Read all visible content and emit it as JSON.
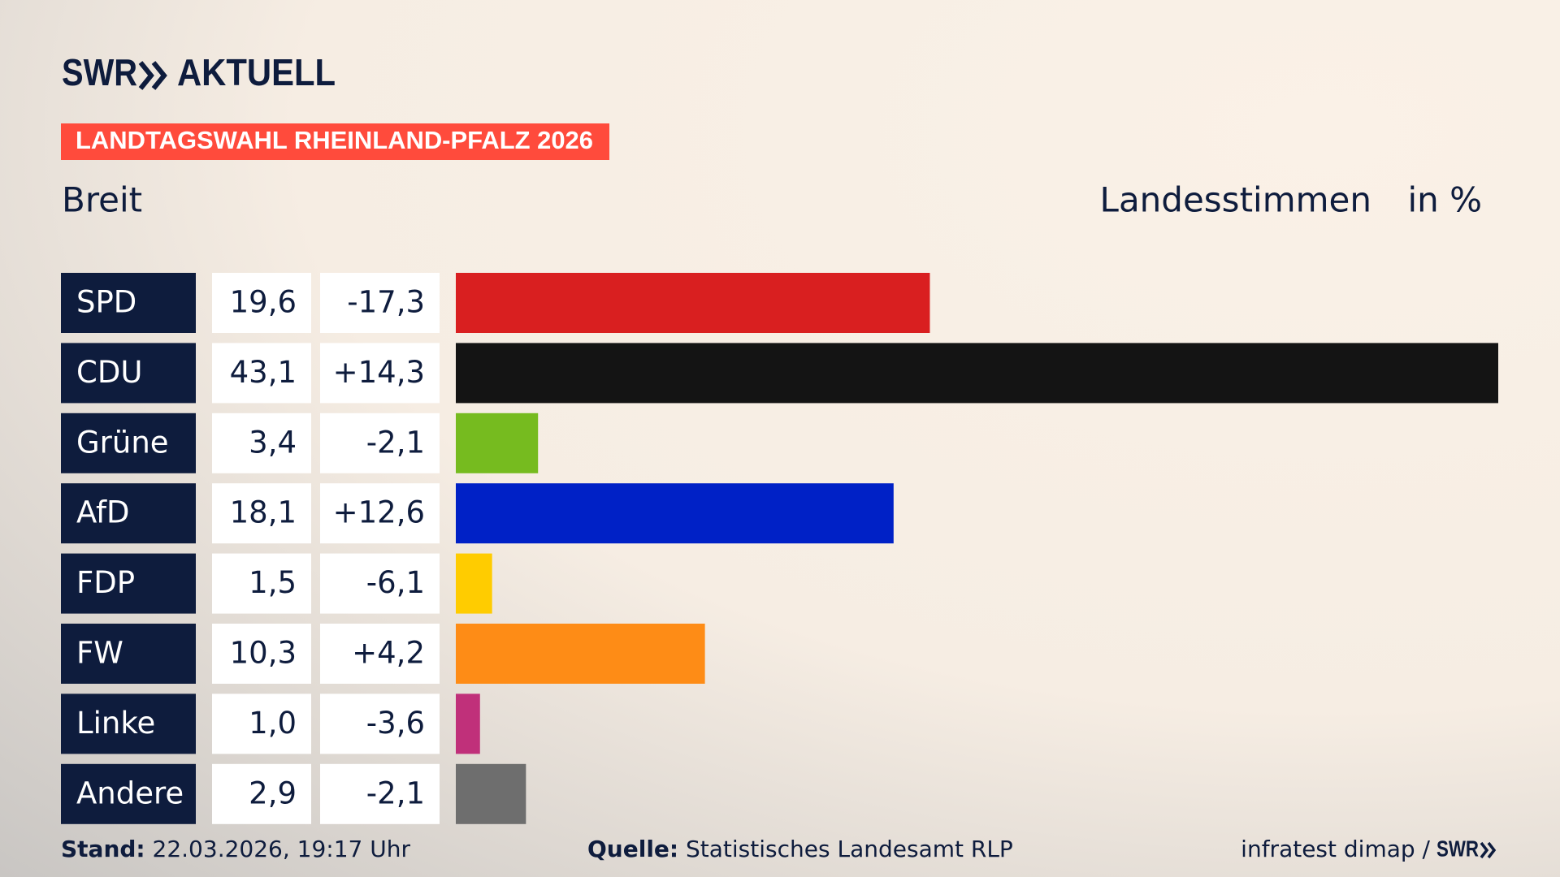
{
  "chart_data": {
    "type": "bar",
    "brand": "SWR",
    "brand_name": "AKTUELL",
    "banner": "LANDTAGSWAHL RHEINLAND-PFALZ 2026",
    "subtitle": "Breit",
    "metric_label": "Landesstimmen",
    "unit_label": "in %",
    "categories": [
      "SPD",
      "CDU",
      "Grüne",
      "AfD",
      "FDP",
      "FW",
      "Linke",
      "Andere"
    ],
    "values": [
      19.6,
      43.1,
      3.4,
      18.1,
      1.5,
      10.3,
      1.0,
      2.9
    ],
    "value_labels": [
      "19,6",
      "43,1",
      "3,4",
      "18,1",
      "1,5",
      "10,3",
      "1,0",
      "2,9"
    ],
    "colors": [
      "#d91f20",
      "#141414",
      "#76bb1f",
      "#0021c6",
      "#ffcc00",
      "#fe8c16",
      "#c0307a",
      "#6e6e6e"
    ],
    "changes": {
      "values": [
        -17.3,
        14.3,
        -2.1,
        12.6,
        -6.1,
        4.2,
        -3.6,
        -2.1
      ],
      "value_labels": [
        "-17,3",
        "+14,3",
        "-2,1",
        "+12,6",
        "-6,1",
        "+4,2",
        "-3,6",
        "-2,1"
      ]
    },
    "stand_label": "Stand:",
    "stand": "22.03.2026, 19:17 Uhr",
    "source_label": "Quelle:",
    "source": "Statistisches Landesamt RLP",
    "credit": "infratest dimap /",
    "credit_brand": "SWR"
  }
}
